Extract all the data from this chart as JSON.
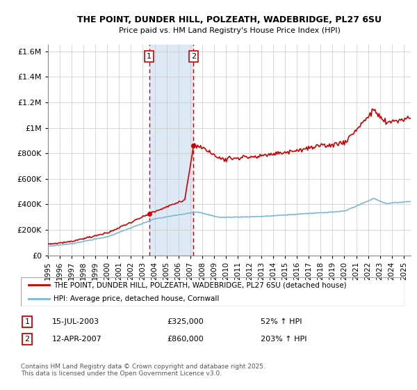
{
  "title1": "THE POINT, DUNDER HILL, POLZEATH, WADEBRIDGE, PL27 6SU",
  "title2": "Price paid vs. HM Land Registry's House Price Index (HPI)",
  "legend_line1": "THE POINT, DUNDER HILL, POLZEATH, WADEBRIDGE, PL27 6SU (detached house)",
  "legend_line2": "HPI: Average price, detached house, Cornwall",
  "footer": "Contains HM Land Registry data © Crown copyright and database right 2025.\nThis data is licensed under the Open Government Licence v3.0.",
  "marker1_label": "1",
  "marker1_date": "15-JUL-2003",
  "marker1_price": "£325,000",
  "marker1_hpi": "52% ↑ HPI",
  "marker2_label": "2",
  "marker2_date": "12-APR-2007",
  "marker2_price": "£860,000",
  "marker2_hpi": "203% ↑ HPI",
  "marker1_x": 2003.54,
  "marker2_x": 2007.28,
  "marker1_price_val": 325000,
  "marker2_price_val": 860000,
  "red_color": "#cc0000",
  "blue_color": "#7ab8d9",
  "shade_color": "#ddeaf5",
  "ylim": [
    0,
    1650000
  ],
  "yticks": [
    0,
    200000,
    400000,
    600000,
    800000,
    1000000,
    1200000,
    1400000,
    1600000
  ],
  "xlim_start": 1995.0,
  "xlim_end": 2025.6
}
